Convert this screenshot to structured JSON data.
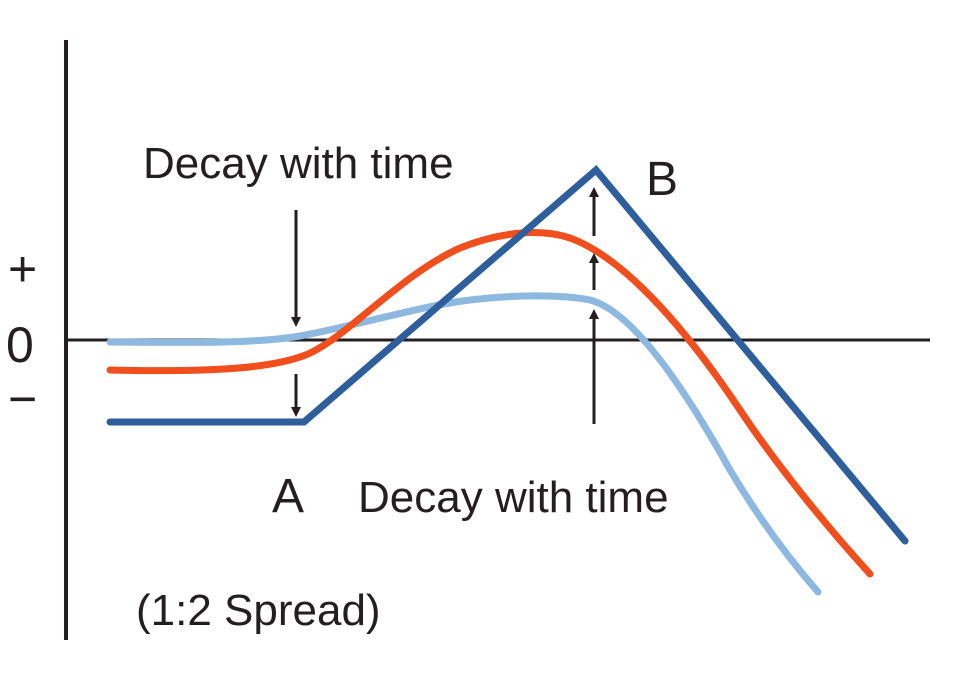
{
  "diagram": {
    "y_axis_signs": {
      "plus": "+",
      "zero": "0",
      "minus": "−"
    },
    "points": {
      "a": "A",
      "b": "B"
    },
    "annotations": {
      "decay_upper": "Decay with time",
      "decay_lower": "Decay with time",
      "caption": "(1:2 Spread)"
    },
    "curves": [
      {
        "id": "at-expiry",
        "color": "#2e5e9c"
      },
      {
        "id": "mid-life",
        "color": "#f04e1c"
      },
      {
        "id": "long-dated",
        "color": "#8db8e0"
      }
    ],
    "colors": {
      "axis": "#231f20",
      "arrow": "#231f20",
      "text": "#231f20"
    }
  }
}
